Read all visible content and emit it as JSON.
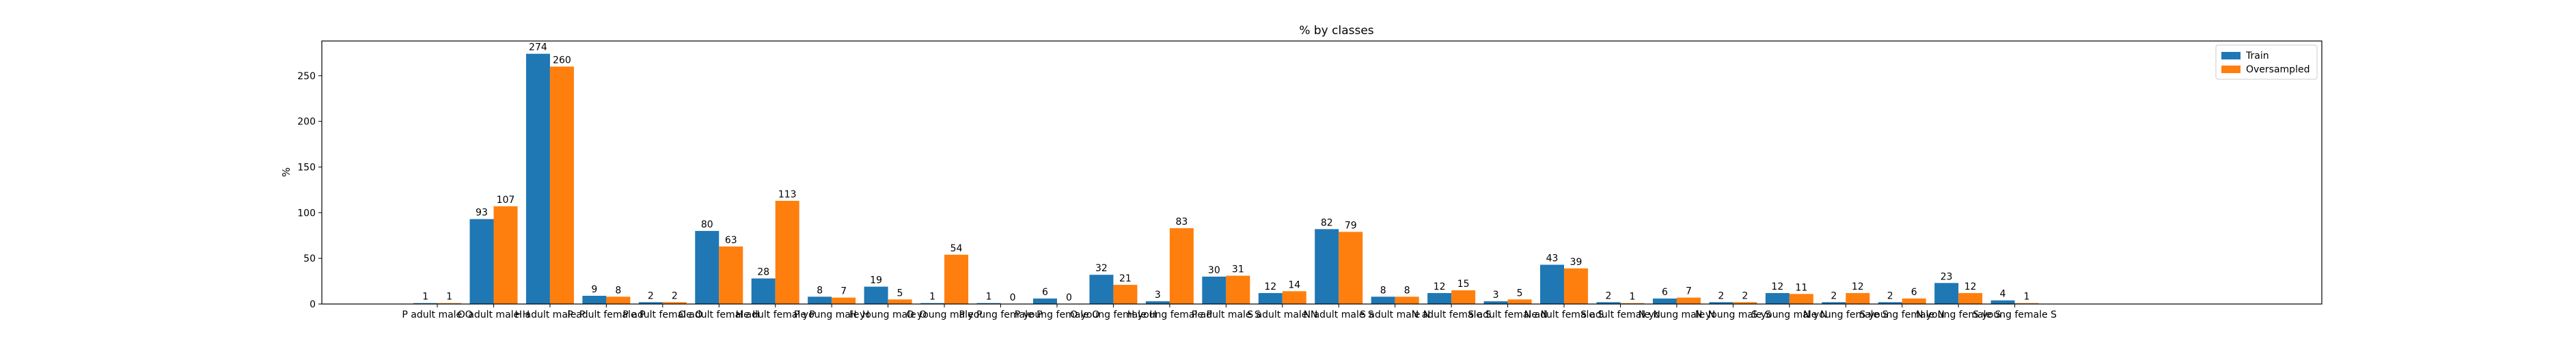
{
  "chart_data": {
    "type": "bar",
    "title": "% by classes",
    "xlabel": "",
    "ylabel": "%",
    "ylim": [
      0,
      288
    ],
    "yticks": [
      0,
      50,
      100,
      150,
      200,
      250
    ],
    "grid": false,
    "legend_position": "top-right",
    "categories": [
      "P adult male O",
      "O adult male H",
      "H adult male P",
      "P adult female P",
      "P adult female O",
      "O adult female H",
      "H adult female P",
      "P young male H",
      "H young male O",
      "O young male P",
      "P young female P",
      "P young female O",
      "O young female H",
      "H young female P",
      "P adult male S",
      "S adult male N",
      "N adult male S",
      "S adult male N",
      "N adult female S",
      "S adult female N",
      "N adult female S",
      "S adult female N",
      "N young male N",
      "N young male S",
      "S young male N",
      "N young female S",
      "S young female N",
      "N young female S",
      "S young female S"
    ],
    "series": [
      {
        "name": "Train",
        "color": "#1f77b4",
        "values": [
          1,
          93,
          274,
          9,
          2,
          80,
          28,
          8,
          19,
          1,
          1,
          6,
          32,
          3,
          30,
          12,
          82,
          8,
          12,
          3,
          43,
          2,
          6,
          2,
          12,
          2,
          2,
          23,
          4
        ]
      },
      {
        "name": "Oversampled",
        "color": "#ff7f0e",
        "values": [
          1,
          107,
          260,
          8,
          2,
          63,
          113,
          7,
          5,
          54,
          0,
          0,
          21,
          83,
          31,
          14,
          79,
          8,
          15,
          5,
          39,
          1,
          7,
          2,
          11,
          12,
          6,
          12,
          1
        ]
      }
    ]
  }
}
